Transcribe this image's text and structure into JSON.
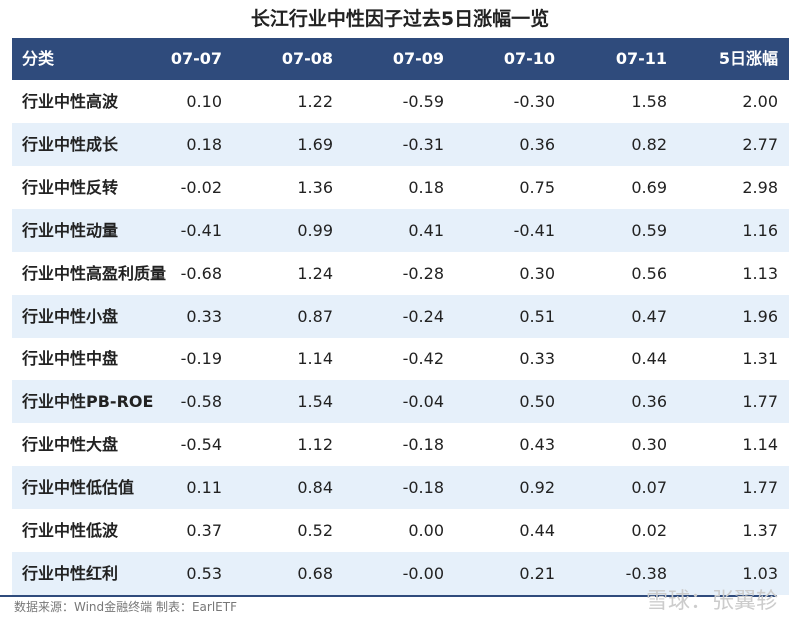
{
  "title": "长江行业中性因子过去5日涨幅一览",
  "table": {
    "header": [
      "分类",
      "07-07",
      "07-08",
      "07-09",
      "07-10",
      "07-11",
      "5日涨幅"
    ],
    "rows": [
      [
        "行业中性高波",
        "0.10",
        "1.22",
        "-0.59",
        "-0.30",
        "1.58",
        "2.00"
      ],
      [
        "行业中性成长",
        "0.18",
        "1.69",
        "-0.31",
        "0.36",
        "0.82",
        "2.77"
      ],
      [
        "行业中性反转",
        "-0.02",
        "1.36",
        "0.18",
        "0.75",
        "0.69",
        "2.98"
      ],
      [
        "行业中性动量",
        "-0.41",
        "0.99",
        "0.41",
        "-0.41",
        "0.59",
        "1.16"
      ],
      [
        "行业中性高盈利质量",
        "-0.68",
        "1.24",
        "-0.28",
        "0.30",
        "0.56",
        "1.13"
      ],
      [
        "行业中性小盘",
        "0.33",
        "0.87",
        "-0.24",
        "0.51",
        "0.47",
        "1.96"
      ],
      [
        "行业中性中盘",
        "-0.19",
        "1.14",
        "-0.42",
        "0.33",
        "0.44",
        "1.31"
      ],
      [
        "行业中性PB-ROE",
        "-0.58",
        "1.54",
        "-0.04",
        "0.50",
        "0.36",
        "1.77"
      ],
      [
        "行业中性大盘",
        "-0.54",
        "1.12",
        "-0.18",
        "0.43",
        "0.30",
        "1.14"
      ],
      [
        "行业中性低估值",
        "0.11",
        "0.84",
        "-0.18",
        "0.92",
        "0.07",
        "1.77"
      ],
      [
        "行业中性低波",
        "0.37",
        "0.52",
        "0.00",
        "0.44",
        "0.02",
        "1.37"
      ],
      [
        "行业中性红利",
        "0.53",
        "0.68",
        "-0.00",
        "0.21",
        "-0.38",
        "1.03"
      ]
    ]
  },
  "source": "数据来源：Wind金融终端 制表：EarlETF",
  "watermark": "雪球：张翼轸"
}
